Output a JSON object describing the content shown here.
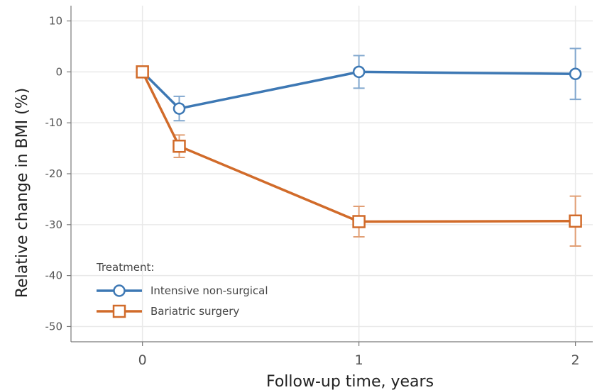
{
  "chart_data": {
    "type": "line",
    "title": "",
    "xlabel": "Follow-up time, years",
    "ylabel": "Relative change in BMI (%)",
    "xlim": [
      -0.33,
      2.08
    ],
    "ylim": [
      -53,
      13
    ],
    "xticks": [
      0,
      1,
      2
    ],
    "xtick_labels": [
      "0",
      "1",
      "2"
    ],
    "yticks": [
      10,
      0,
      -10,
      -20,
      -30,
      -40,
      -50
    ],
    "ytick_labels": [
      "10",
      "0",
      "-10",
      "-20",
      "-30",
      "-40",
      "-50"
    ],
    "grid": true,
    "legend": {
      "title": "Treatment:",
      "position": "bottom-left"
    },
    "series": [
      {
        "name": "Intensive non-surgical",
        "color": "#3d78b4",
        "marker": "circle",
        "x": [
          0,
          0.17,
          1,
          2
        ],
        "y": [
          0,
          -7.2,
          0,
          -0.4
        ],
        "err_low": [
          0,
          -9.6,
          -3.2,
          -5.4
        ],
        "err_high": [
          0,
          -4.8,
          3.2,
          4.6
        ]
      },
      {
        "name": "Bariatric surgery",
        "color": "#d16b2a",
        "marker": "square",
        "x": [
          0,
          0.17,
          1,
          2
        ],
        "y": [
          0,
          -14.6,
          -29.4,
          -29.3
        ],
        "err_low": [
          0,
          -16.8,
          -32.4,
          -34.2
        ],
        "err_high": [
          0,
          -12.4,
          -26.4,
          -24.4
        ]
      }
    ]
  }
}
